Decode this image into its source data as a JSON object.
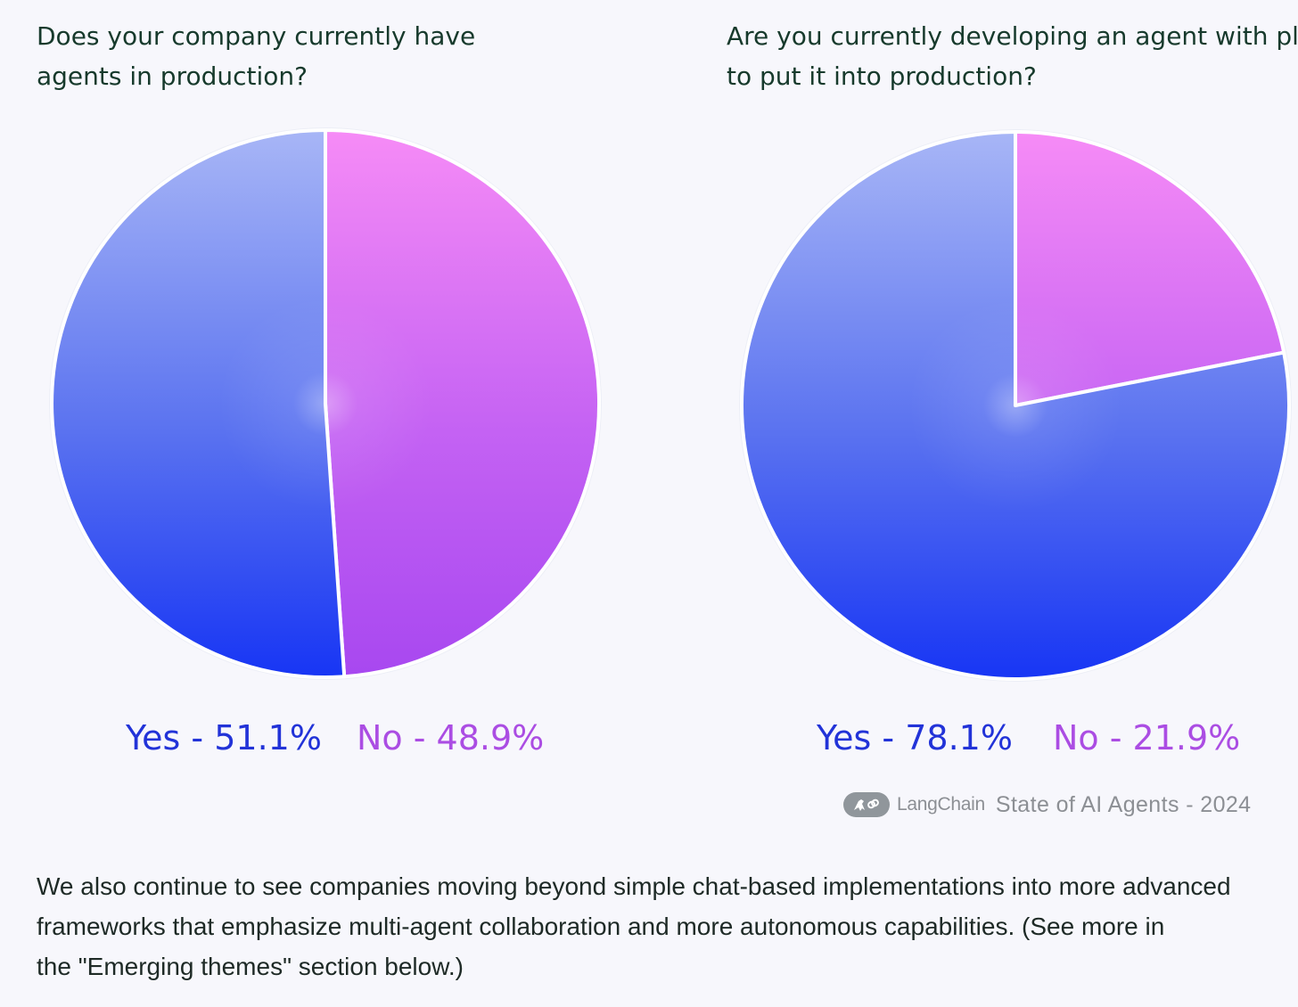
{
  "colors": {
    "yes": "#2233d8",
    "no": "#ab4de3",
    "background": "#f7f7fc",
    "title": "#173a2c"
  },
  "chart_data": [
    {
      "type": "pie",
      "title_lines": [
        "Does your company currently have",
        "agents in production?"
      ],
      "slices": [
        {
          "label": "Yes",
          "value": 51.1,
          "display": "Yes - 51.1%",
          "color": "#2233d8"
        },
        {
          "label": "No",
          "value": 48.9,
          "display": "No - 48.9%",
          "color": "#ab4de3"
        }
      ]
    },
    {
      "type": "pie",
      "title_lines": [
        "Are you currently developing an agent with plans",
        "to put it into production?"
      ],
      "slices": [
        {
          "label": "Yes",
          "value": 78.1,
          "display": "Yes - 78.1%",
          "color": "#2233d8"
        },
        {
          "label": "No",
          "value": 21.9,
          "display": "No - 21.9%",
          "color": "#ab4de3"
        }
      ]
    }
  ],
  "watermark": {
    "logo_icon": "parrot-link-logo",
    "brand": "LangChain",
    "caption": "State of AI Agents - 2024"
  },
  "body_text_lines": [
    "We also continue to see companies moving beyond simple chat-based implementations into more advanced",
    "frameworks that emphasize multi-agent collaboration and more autonomous capabilities. (See more in",
    "the \"Emerging themes\" section below.)"
  ]
}
